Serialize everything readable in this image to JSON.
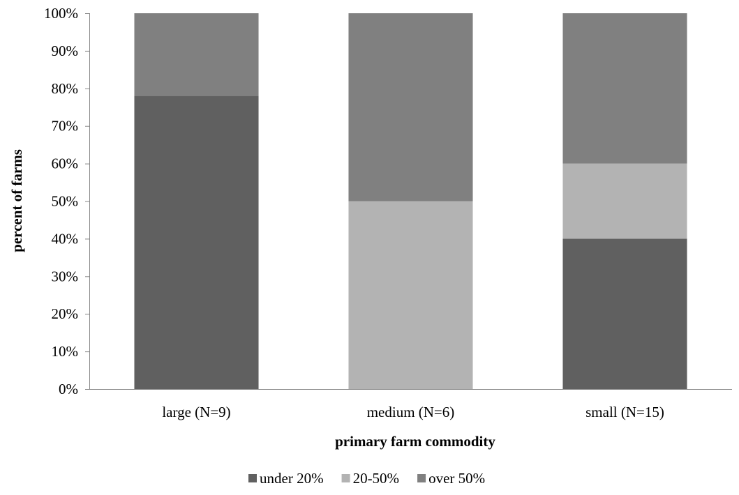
{
  "chart_data": {
    "type": "bar",
    "stacked": true,
    "categories": [
      "large (N=9)",
      "medium (N=6)",
      "small (N=15)"
    ],
    "series": [
      {
        "name": "under 20%",
        "values": [
          78,
          0,
          40
        ],
        "color": "#606060"
      },
      {
        "name": "20-50%",
        "values": [
          0,
          50,
          20
        ],
        "color": "#b3b3b3"
      },
      {
        "name": "over 50%",
        "values": [
          22,
          50,
          40
        ],
        "color": "#808080"
      }
    ],
    "xlabel": "primary farm commodity",
    "ylabel": "percent of farms",
    "ylim": [
      0,
      100
    ],
    "yticks": [
      "0%",
      "10%",
      "20%",
      "30%",
      "40%",
      "50%",
      "60%",
      "70%",
      "80%",
      "90%",
      "100%"
    ],
    "grid": false,
    "legend_position": "bottom"
  }
}
